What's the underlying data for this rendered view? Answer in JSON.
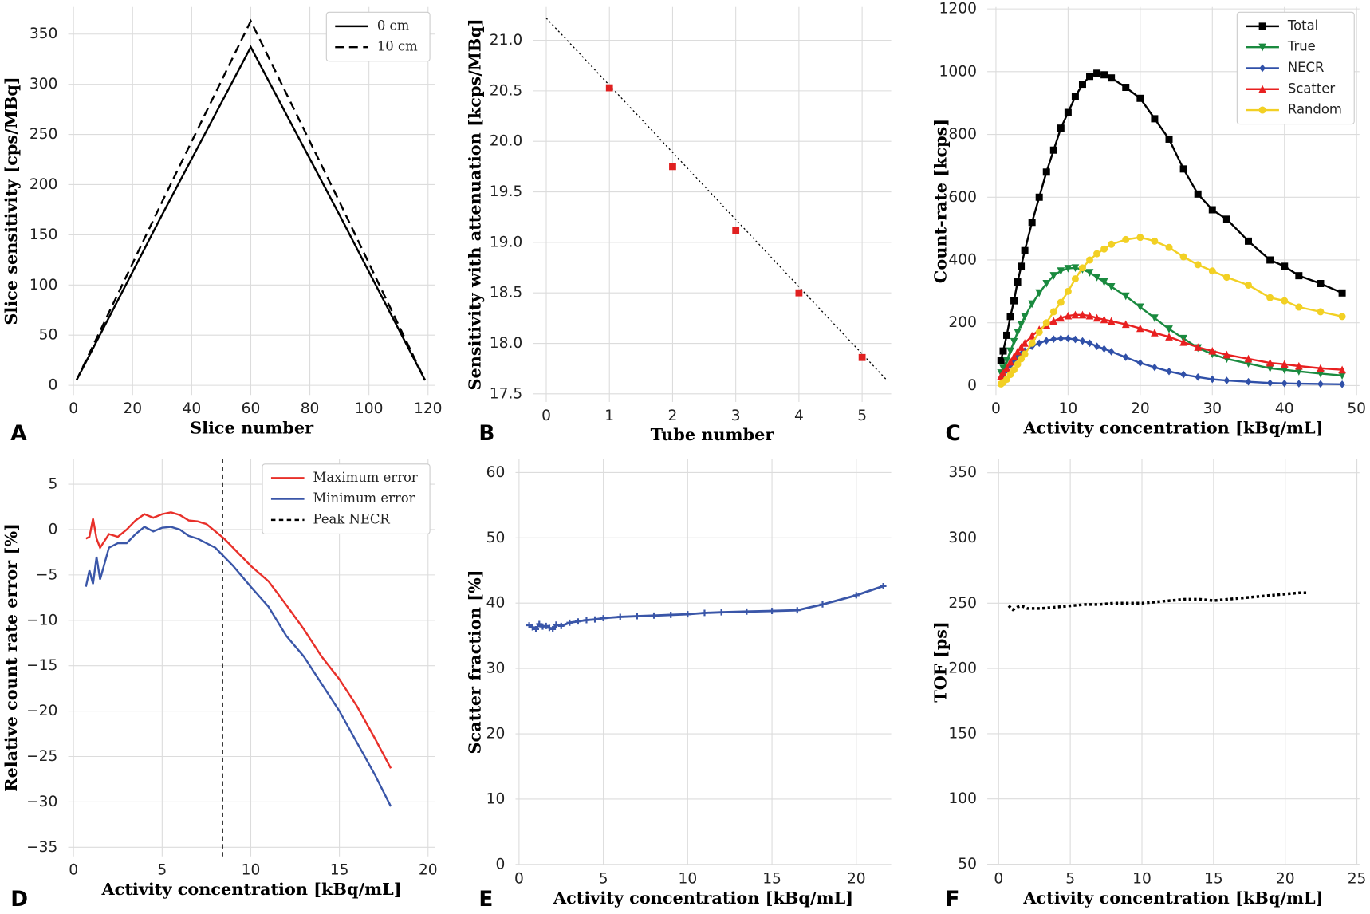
{
  "chart_data": [
    {
      "type": "line",
      "panel": "A",
      "xlabel": "Slice number",
      "ylabel": "Slice sensitivity [cps/MBq]",
      "xlim": [
        -1.8,
        122.4
      ],
      "ylim": [
        -9.6,
        377
      ],
      "xticks": [
        0,
        20,
        40,
        60,
        80,
        100,
        120
      ],
      "yticks": [
        0,
        50,
        100,
        150,
        200,
        250,
        300,
        350
      ],
      "grid": true,
      "legend": "upper right",
      "x": [
        1,
        30,
        60,
        90,
        119
      ],
      "series": [
        {
          "name": "0 cm",
          "color": "#000000",
          "linestyle": "solid",
          "values": [
            5,
            170,
            337,
            170,
            5
          ]
        },
        {
          "name": "10 cm",
          "color": "#000000",
          "linestyle": "dashed",
          "values": [
            5,
            183,
            363,
            183,
            5
          ]
        }
      ]
    },
    {
      "type": "line",
      "panel": "B",
      "xlabel": "Tube number",
      "ylabel": "Sensitivity with attenuation [kcps/MBq]",
      "xlim": [
        -0.21,
        5.46
      ],
      "ylim": [
        17.42,
        21.33
      ],
      "xticks": [
        0,
        1,
        2,
        3,
        4,
        5
      ],
      "yticks": [
        17.5,
        {
          "value": 18,
          "label": "18.0"
        },
        18.5,
        {
          "value": 19,
          "label": "19.0"
        },
        19.5,
        {
          "value": 20,
          "label": "20.0"
        },
        20.5,
        {
          "value": 21,
          "label": "21.0"
        }
      ],
      "grid": true,
      "series": [
        {
          "color": "#000000",
          "linestyle": "dotted",
          "x": [
            0,
            5.4
          ],
          "values": [
            21.22,
            17.63
          ]
        },
        {
          "color": "#e02020",
          "linestyle": "none",
          "marker": "square",
          "x": [
            1,
            2,
            3,
            4,
            5
          ],
          "values": [
            20.53,
            19.75,
            19.12,
            18.5,
            17.86
          ]
        }
      ]
    },
    {
      "type": "line",
      "panel": "C",
      "xlabel": "Activity concentration [kBq/mL]",
      "ylabel": "Count-rate [kcps]",
      "xlim": [
        -1.2,
        50.4
      ],
      "ylim": [
        -30,
        1206
      ],
      "xticks": [
        0,
        10,
        20,
        30,
        40,
        50
      ],
      "yticks": [
        0,
        200,
        400,
        600,
        800,
        1000,
        1200
      ],
      "grid": true,
      "legend": "upper right",
      "x": [
        0.7,
        1,
        1.5,
        2,
        2.5,
        3,
        3.5,
        4,
        5,
        6,
        7,
        8,
        9,
        10,
        11,
        12,
        13,
        14,
        15,
        16,
        18,
        20,
        22,
        24,
        26,
        28,
        30,
        32,
        35,
        38,
        40,
        42,
        45,
        48
      ],
      "series": [
        {
          "name": "Total",
          "color": "#000000",
          "linestyle": "solid",
          "marker": "square",
          "values": [
            80,
            110,
            160,
            220,
            270,
            330,
            380,
            430,
            520,
            600,
            680,
            750,
            820,
            870,
            920,
            960,
            985,
            995,
            990,
            980,
            950,
            915,
            850,
            785,
            690,
            610,
            560,
            530,
            460,
            400,
            380,
            350,
            325,
            295
          ]
        },
        {
          "name": "True",
          "color": "#1a8a3f",
          "linestyle": "solid",
          "marker": "triangle-down",
          "values": [
            40,
            55,
            80,
            110,
            140,
            170,
            195,
            220,
            260,
            295,
            325,
            350,
            365,
            373,
            375,
            370,
            360,
            345,
            330,
            315,
            285,
            250,
            215,
            180,
            150,
            120,
            100,
            85,
            70,
            55,
            50,
            45,
            38,
            32
          ]
        },
        {
          "name": "NECR",
          "color": "#3050a8",
          "linestyle": "solid",
          "marker": "diamond",
          "values": [
            25,
            35,
            50,
            65,
            78,
            90,
            100,
            110,
            125,
            135,
            143,
            148,
            150,
            150,
            147,
            142,
            135,
            125,
            117,
            108,
            90,
            72,
            58,
            45,
            35,
            27,
            20,
            16,
            12,
            8,
            7,
            6,
            5,
            4
          ]
        },
        {
          "name": "Scatter",
          "color": "#e82020",
          "linestyle": "solid",
          "marker": "triangle-up",
          "values": [
            30,
            40,
            55,
            75,
            92,
            108,
            122,
            135,
            158,
            178,
            193,
            205,
            215,
            222,
            225,
            225,
            222,
            215,
            210,
            205,
            195,
            182,
            168,
            155,
            138,
            122,
            110,
            98,
            85,
            72,
            68,
            62,
            55,
            50
          ]
        },
        {
          "name": "Random",
          "color": "#f2d024",
          "linestyle": "solid",
          "marker": "circle",
          "values": [
            5,
            10,
            20,
            35,
            50,
            68,
            85,
            100,
            135,
            170,
            200,
            235,
            265,
            300,
            340,
            375,
            400,
            420,
            435,
            450,
            465,
            472,
            460,
            440,
            410,
            385,
            365,
            345,
            320,
            280,
            270,
            250,
            235,
            220
          ]
        }
      ]
    },
    {
      "type": "line",
      "panel": "D",
      "xlabel": "Activity concentration [kBq/mL]",
      "ylabel": "Relative count rate error [%]",
      "xlim": [
        -0.3,
        20.4
      ],
      "ylim": [
        -36,
        7.8
      ],
      "xticks": [
        0,
        5,
        10,
        15,
        20
      ],
      "yticks": [
        5,
        0,
        {
          "value": -5,
          "label": "−5"
        },
        {
          "value": -10,
          "label": "−10"
        },
        {
          "value": -15,
          "label": "−15"
        },
        {
          "value": -20,
          "label": "−20"
        },
        {
          "value": -25,
          "label": "−25"
        },
        {
          "value": -30,
          "label": "−30"
        },
        {
          "value": -35,
          "label": "−35"
        }
      ],
      "grid": true,
      "legend": "upper right",
      "x": [
        0.7,
        0.9,
        1.1,
        1.3,
        1.5,
        2,
        2.5,
        3,
        3.5,
        4,
        4.5,
        5,
        5.5,
        6,
        6.5,
        7,
        7.5,
        8,
        8.5,
        9,
        10,
        11,
        12,
        13,
        14,
        15,
        16,
        17,
        17.9
      ],
      "series": [
        {
          "name": "Maximum error",
          "color": "#e8302a",
          "linestyle": "solid",
          "values": [
            -1,
            -0.8,
            1.2,
            -1,
            -2,
            -0.5,
            -0.8,
            0,
            1,
            1.7,
            1.3,
            1.7,
            1.9,
            1.6,
            1,
            0.9,
            0.6,
            -0.2,
            -1,
            -2,
            -4,
            -5.7,
            -8.3,
            -11,
            -14,
            -16.5,
            -19.5,
            -23,
            -26.3
          ]
        },
        {
          "name": "Minimum error",
          "color": "#3a56a8",
          "linestyle": "solid",
          "values": [
            -6.3,
            -4.5,
            -6,
            -3,
            -5.5,
            -2,
            -1.5,
            -1.5,
            -0.5,
            0.3,
            -0.2,
            0.2,
            0.3,
            0,
            -0.7,
            -1,
            -1.5,
            -2,
            -3,
            -4,
            -6.3,
            -8.5,
            -11.7,
            -14,
            -17,
            -20,
            -23.5,
            -27,
            -30.5
          ]
        }
      ],
      "vlines": [
        {
          "name": "Peak NECR",
          "color": "#000000",
          "linestyle": "dashed",
          "x": 8.4
        }
      ]
    },
    {
      "type": "line",
      "panel": "E",
      "xlabel": "Activity concentration [kBq/mL]",
      "ylabel": "Scatter fraction [%]",
      "xlim": [
        -0.21,
        22.07
      ],
      "ylim": [
        -0.1,
        62.1
      ],
      "xticks": [
        0,
        5,
        10,
        15,
        20
      ],
      "yticks": [
        0,
        10,
        20,
        30,
        40,
        50,
        60
      ],
      "grid": true,
      "x": [
        0.6,
        0.8,
        1,
        1.2,
        1.4,
        1.6,
        1.8,
        2,
        2.2,
        2.5,
        3,
        3.5,
        4,
        4.5,
        5,
        6,
        7,
        8,
        9,
        10,
        11,
        12,
        13.5,
        15,
        16.5,
        18,
        20,
        21.6
      ],
      "series": [
        {
          "color": "#3a56a8",
          "linestyle": "solid",
          "marker": "plus",
          "values": [
            36.6,
            36.3,
            36,
            36.8,
            36.4,
            36.5,
            36.2,
            36,
            36.7,
            36.5,
            37,
            37.2,
            37.4,
            37.5,
            37.7,
            37.9,
            38,
            38.1,
            38.2,
            38.3,
            38.5,
            38.6,
            38.7,
            38.8,
            38.9,
            39.8,
            41.2,
            42.6
          ]
        }
      ]
    },
    {
      "type": "line",
      "panel": "F",
      "xlabel": "Activity concentration [kBq/mL]",
      "ylabel": "TOF [ps]",
      "xlim": [
        -0.79,
        25.18
      ],
      "ylim": [
        49.3,
        360.7
      ],
      "xticks": [
        0,
        5,
        10,
        15,
        20,
        25
      ],
      "yticks": [
        50,
        100,
        150,
        200,
        250,
        300,
        350
      ],
      "grid": true,
      "x": [
        0.7,
        1,
        1.3,
        1.6,
        2,
        3,
        4,
        5,
        6,
        7,
        8,
        9,
        10,
        11,
        12,
        13,
        14,
        15,
        16,
        17,
        18,
        19,
        20,
        21,
        21.5
      ],
      "series": [
        {
          "color": "#000000",
          "linestyle": "dotted",
          "values": [
            248,
            245,
            247,
            248,
            246,
            246,
            247,
            248,
            249,
            249,
            250,
            250,
            250,
            251,
            252,
            253,
            253,
            252,
            253,
            254,
            255,
            256,
            257,
            258,
            258
          ]
        }
      ]
    }
  ]
}
